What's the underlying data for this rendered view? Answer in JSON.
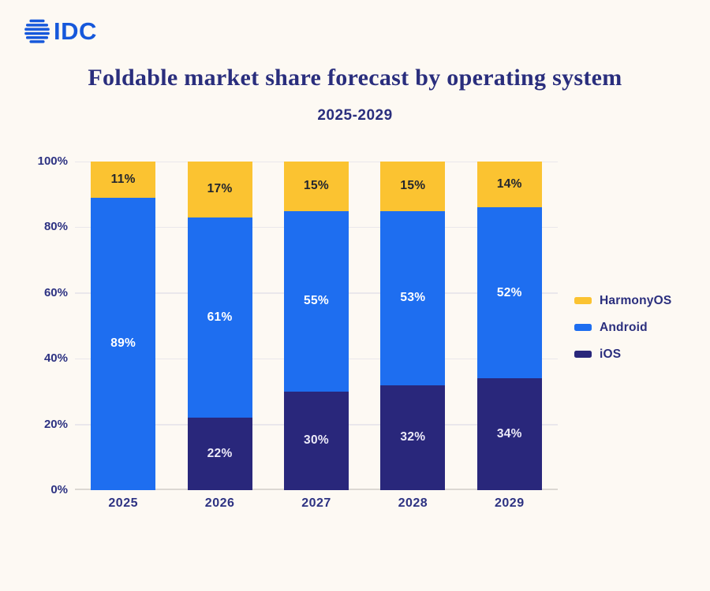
{
  "logo": {
    "text": "IDC",
    "icon": "idc-globe-icon",
    "color": "#1658DB"
  },
  "header": {
    "title": "Foldable market share forecast by operating system",
    "subtitle": "2025-2029"
  },
  "colors": {
    "background": "#FDF9F3",
    "text_navy": "#2A2E7D",
    "harmonyos": "#FBC331",
    "android": "#1E6EF0",
    "ios": "#29277B",
    "gridline": "#EAE7EB",
    "axis_line": "#DCD8D3"
  },
  "chart_data": {
    "type": "bar",
    "stacked": true,
    "title": "Foldable market share forecast by operating system",
    "subtitle": "2025-2029",
    "categories": [
      "2025",
      "2026",
      "2027",
      "2028",
      "2029"
    ],
    "series": [
      {
        "name": "HarmonyOS",
        "color": "#FBC331",
        "label_color": "#23262E",
        "values": [
          11,
          17,
          15,
          15,
          14
        ]
      },
      {
        "name": "Android",
        "color": "#1E6EF0",
        "label_color": "#FFFFFF",
        "values": [
          89,
          61,
          55,
          53,
          52
        ]
      },
      {
        "name": "iOS",
        "color": "#29277B",
        "label_color": "#ECEAF8",
        "values": [
          0,
          22,
          30,
          32,
          34
        ]
      }
    ],
    "stack_order_bottom_to_top": [
      "iOS",
      "Android",
      "HarmonyOS"
    ],
    "value_label_format": "{v}%",
    "y_axis": {
      "unit": "%",
      "ticks": [
        0,
        20,
        40,
        60,
        80,
        100
      ],
      "range": [
        0,
        100
      ]
    },
    "grid": true,
    "legend_position": "right"
  }
}
